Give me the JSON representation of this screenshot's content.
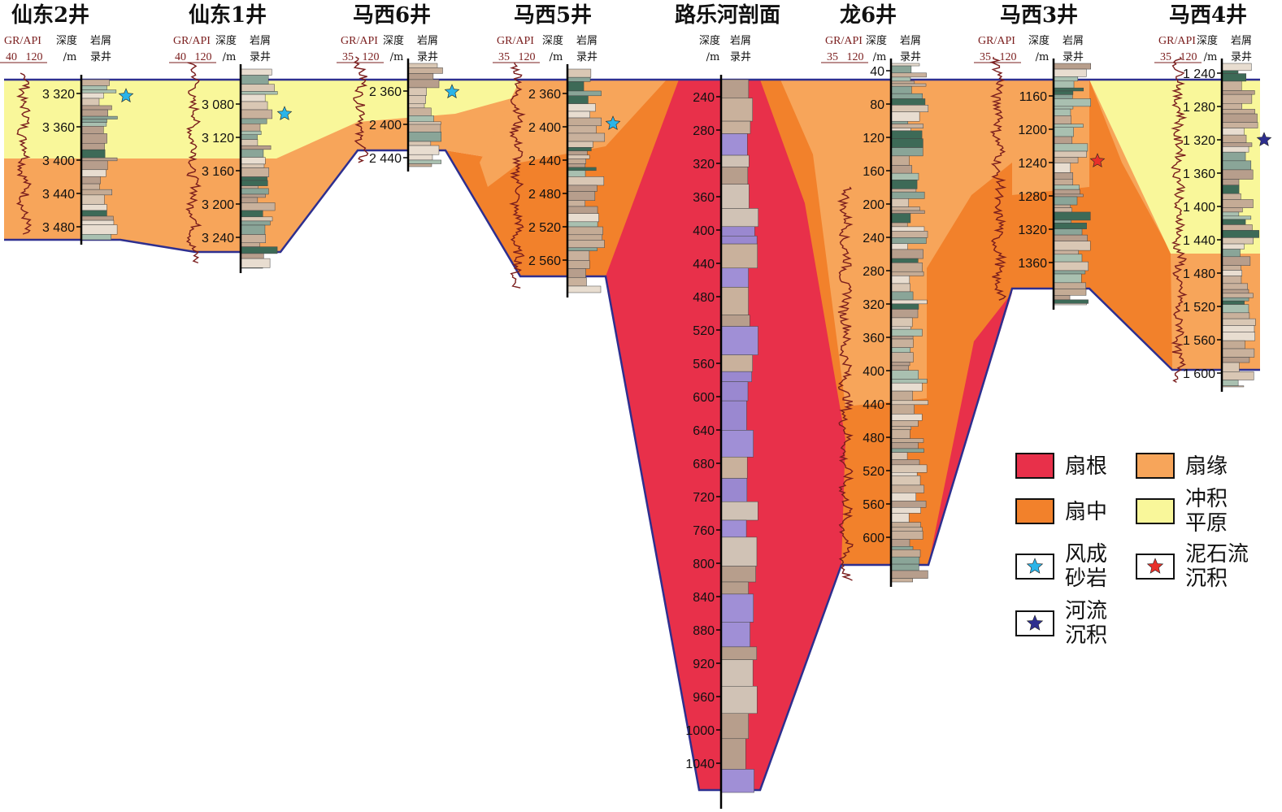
{
  "colors": {
    "fan_root": "#e8304a",
    "fan_middle": "#f2812b",
    "fan_margin": "#f7a55a",
    "alluvial_plain": "#f9f79a",
    "boundary": "#2e2f8f",
    "gr_curve": "#7a1d1d",
    "eolian_star": "#2ab4e8",
    "debris_star": "#e8302a",
    "fluvial_star": "#2e2f8f"
  },
  "headers": {
    "gr": "GR/API",
    "depth": "深度",
    "depth_unit": "/m",
    "lith1": "岩屑",
    "lith2": "录井"
  },
  "columns": [
    {
      "name": "仙东2井",
      "scale": [
        "40",
        "120"
      ],
      "depths": [
        "3 320",
        "3 360",
        "3 400",
        "3 440",
        "3 480"
      ]
    },
    {
      "name": "仙东1井",
      "scale": [
        "40",
        "120"
      ],
      "depths": [
        "3 080",
        "3 120",
        "3 160",
        "3 200",
        "3 240"
      ]
    },
    {
      "name": "马西6井",
      "scale": [
        "35",
        "120"
      ],
      "depths": [
        "2 360",
        "2 400",
        "2 440"
      ]
    },
    {
      "name": "马西5井",
      "scale": [
        "35",
        "120"
      ],
      "depths": [
        "2 360",
        "2 400",
        "2 440",
        "2 480",
        "2 520",
        "2 560"
      ]
    },
    {
      "name": "路乐河剖面",
      "depths": [
        "240",
        "280",
        "320",
        "360",
        "400",
        "440",
        "480",
        "520",
        "560",
        "600",
        "640",
        "680",
        "720",
        "760",
        "800",
        "840",
        "880",
        "920",
        "960",
        "1000",
        "1040"
      ]
    },
    {
      "name": "龙6井",
      "scale": [
        "35",
        "120"
      ],
      "depths": [
        "40",
        "80",
        "120",
        "160",
        "200",
        "240",
        "280",
        "320",
        "360",
        "400",
        "440",
        "480",
        "520",
        "560",
        "600"
      ]
    },
    {
      "name": "马西3井",
      "scale": [
        "35",
        "120"
      ],
      "depths": [
        "1160",
        "1200",
        "1240",
        "1280",
        "1320",
        "1360"
      ]
    },
    {
      "name": "马西4井",
      "scale": [
        "35",
        "120"
      ],
      "depths": [
        "1 240",
        "1 280",
        "1 320",
        "1 360",
        "1 400",
        "1 440",
        "1 480",
        "1 520",
        "1 560",
        "1 600"
      ]
    }
  ],
  "legend": [
    {
      "label": [
        "扇根"
      ],
      "kind": "swatch",
      "color": "#e8304a"
    },
    {
      "label": [
        "扇缘"
      ],
      "kind": "swatch",
      "color": "#f7a55a"
    },
    {
      "label": [
        "扇中"
      ],
      "kind": "swatch",
      "color": "#f2812b"
    },
    {
      "label": [
        "冲积",
        "平原"
      ],
      "kind": "swatch",
      "color": "#f9f79a"
    },
    {
      "label": [
        "风成",
        "砂岩"
      ],
      "kind": "star",
      "color": "#2ab4e8"
    },
    {
      "label": [
        "泥石流",
        "沉积"
      ],
      "kind": "star",
      "color": "#e8302a"
    },
    {
      "label": [
        "河流",
        "沉积"
      ],
      "kind": "star",
      "color": "#2e2f8f"
    }
  ]
}
